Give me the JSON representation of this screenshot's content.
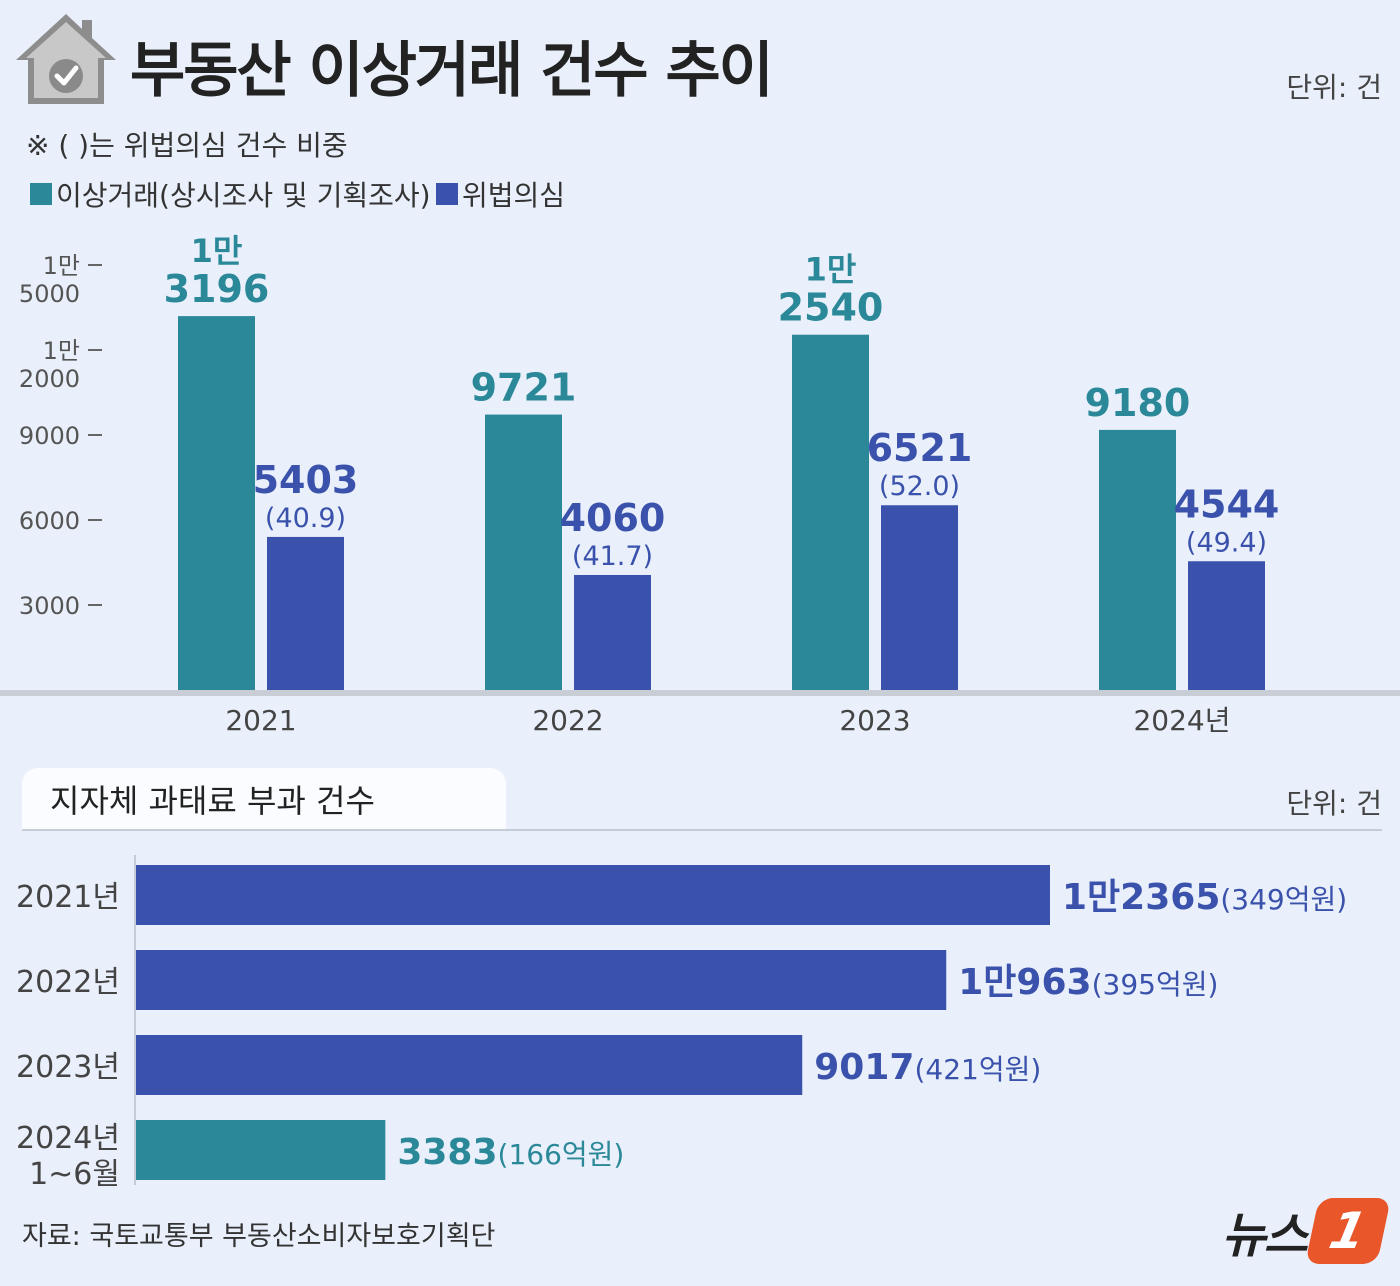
{
  "title": "부동산 이상거래 건수 추이",
  "unit_top": "단위: 건",
  "note": "※ ( )는 위법의심 건수 비중",
  "legend": [
    {
      "label": "이상거래(상시조사 및 기획조사)",
      "color": "#2a8898"
    },
    {
      "label": "위법의심",
      "color": "#3a52ab"
    }
  ],
  "chart_data": [
    {
      "type": "bar",
      "categories": [
        "2021",
        "2022",
        "2023",
        "2024년"
      ],
      "series": [
        {
          "name": "이상거래(상시조사 및 기획조사)",
          "color": "#2a8898",
          "values": [
            13196,
            9721,
            12540,
            9180
          ],
          "value_labels": [
            [
              "1만",
              "3196"
            ],
            [
              "9721"
            ],
            [
              "1만",
              "2540"
            ],
            [
              "9180"
            ]
          ]
        },
        {
          "name": "위법의심",
          "color": "#3a52ab",
          "values": [
            5403,
            4060,
            6521,
            4544
          ],
          "value_labels": [
            [
              "5403"
            ],
            [
              "4060"
            ],
            [
              "6521"
            ],
            [
              "4544"
            ]
          ],
          "share_labels": [
            "(40.9)",
            "(41.7)",
            "(52.0)",
            "(49.4)"
          ]
        }
      ],
      "yticks": [
        {
          "value": 3000,
          "label": [
            "3000"
          ]
        },
        {
          "value": 6000,
          "label": [
            "6000"
          ]
        },
        {
          "value": 9000,
          "label": [
            "9000"
          ]
        },
        {
          "value": 12000,
          "label": [
            "1만",
            "2000"
          ]
        },
        {
          "value": 15000,
          "label": [
            "1만",
            "5000"
          ]
        }
      ],
      "ylim": [
        0,
        15000
      ],
      "grid": false,
      "legend_position": "top-left"
    },
    {
      "type": "bar",
      "orientation": "horizontal",
      "title": "지자체 과태료 부과 건수",
      "unit": "단위: 건",
      "categories": [
        [
          "2021년"
        ],
        [
          "2022년"
        ],
        [
          "2023년"
        ],
        [
          "2024년",
          "1~6월"
        ]
      ],
      "values": [
        12365,
        10963,
        9017,
        3383
      ],
      "value_labels": [
        "1만2365",
        "1만963",
        "9017",
        "3383"
      ],
      "amount_labels": [
        "(349억원)",
        "(395억원)",
        "(421억원)",
        "(166억원)"
      ],
      "colors": [
        "#3a52ab",
        "#3a52ab",
        "#3a52ab",
        "#2a8898"
      ],
      "xlim": [
        0,
        12365
      ]
    }
  ],
  "source": "자료: 국토교통부 부동산소비자보호기획단",
  "logo": {
    "text": "뉴스",
    "mark": "1"
  },
  "icons": {
    "house_check": "house-check-icon"
  }
}
